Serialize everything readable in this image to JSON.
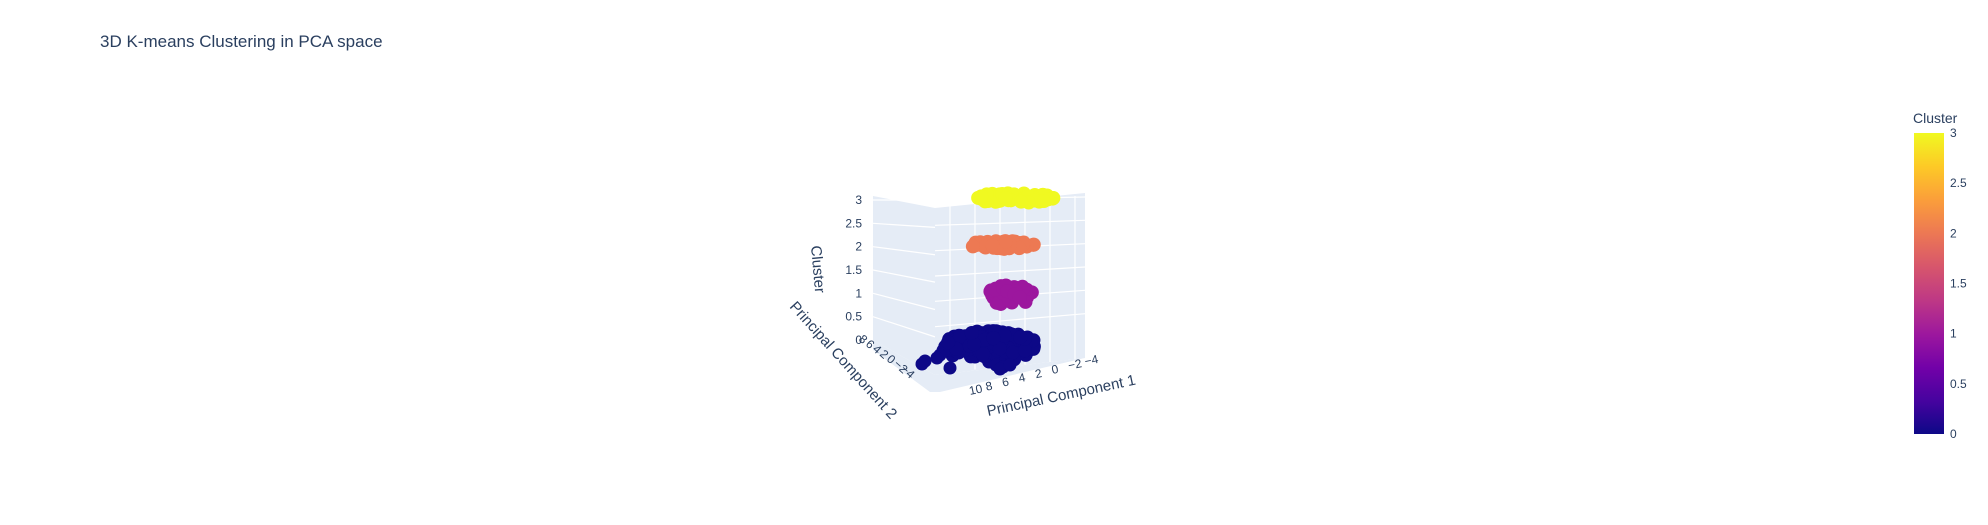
{
  "chart_data": {
    "type": "scatter3d",
    "title": "3D K-means Clustering in PCA space",
    "axes": {
      "x": {
        "label": "Principal Component 1",
        "ticks": [
          "10",
          "8",
          "6",
          "4",
          "2",
          "0",
          "−2",
          "−4"
        ]
      },
      "y": {
        "label": "Principal Component 2",
        "ticks": [
          "8",
          "6",
          "4",
          "2",
          "0",
          "−2",
          "−4"
        ]
      },
      "z": {
        "label": "Cluster",
        "ticks": [
          "0",
          "0.5",
          "1",
          "1.5",
          "2",
          "2.5",
          "3"
        ],
        "range": [
          0,
          3
        ]
      }
    },
    "colorbar": {
      "title": "Cluster",
      "ticks": [
        "0",
        "0.5",
        "1",
        "1.5",
        "2",
        "2.5",
        "3"
      ],
      "range": [
        0,
        3
      ],
      "colorscale": [
        "#0d0887",
        "#46039f",
        "#7201a8",
        "#9c179e",
        "#bd3786",
        "#d8576b",
        "#ed7953",
        "#fb9f3a",
        "#fdca26",
        "#f0f921"
      ]
    },
    "series": [
      {
        "cluster": 3,
        "color": "#f0f921",
        "pc1_range": [
          -1,
          6
        ],
        "pc2_range": [
          -1,
          1
        ]
      },
      {
        "cluster": 2,
        "color": "#ed7953",
        "pc1_range": [
          0,
          5
        ],
        "pc2_range": [
          -1,
          1
        ]
      },
      {
        "cluster": 1,
        "color": "#9c179e",
        "pc1_range": [
          -1,
          2
        ],
        "pc2_range": [
          -1,
          2
        ]
      },
      {
        "cluster": 0,
        "color": "#0d0887",
        "pc1_range": [
          -2,
          11
        ],
        "pc2_range": [
          -4,
          8
        ]
      }
    ]
  }
}
